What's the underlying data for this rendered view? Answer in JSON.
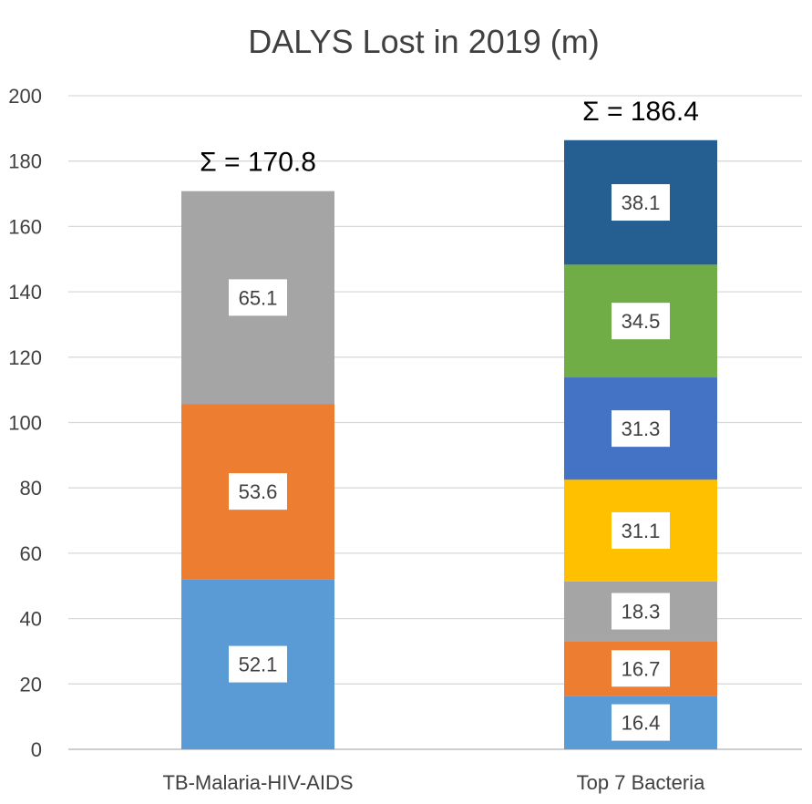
{
  "chart_data": {
    "type": "bar",
    "stacked": true,
    "title": "DALYS Lost in 2019 (m)",
    "xlabel": "",
    "ylabel": "",
    "ylim": [
      0,
      200
    ],
    "yticks": [
      0,
      20,
      40,
      60,
      80,
      100,
      120,
      140,
      160,
      180,
      200
    ],
    "grid": true,
    "legend": "none",
    "categories": [
      "TB-Malaria-HIV-AIDS",
      "Top 7 Bacteria"
    ],
    "totals": [
      "Σ = 170.8",
      "Σ = 186.4"
    ],
    "stacks": [
      [
        {
          "value": 52.1,
          "label": "52.1",
          "color": "#5b9bd5"
        },
        {
          "value": 53.6,
          "label": "53.6",
          "color": "#ed7d31"
        },
        {
          "value": 65.1,
          "label": "65.1",
          "color": "#a5a5a5"
        }
      ],
      [
        {
          "value": 16.4,
          "label": "16.4",
          "color": "#5b9bd5"
        },
        {
          "value": 16.7,
          "label": "16.7",
          "color": "#ed7d31"
        },
        {
          "value": 18.3,
          "label": "18.3",
          "color": "#a5a5a5"
        },
        {
          "value": 31.1,
          "label": "31.1",
          "color": "#ffc000"
        },
        {
          "value": 31.3,
          "label": "31.3",
          "color": "#4472c4"
        },
        {
          "value": 34.5,
          "label": "34.5",
          "color": "#70ad47"
        },
        {
          "value": 38.1,
          "label": "38.1",
          "color": "#255e91"
        }
      ]
    ]
  }
}
